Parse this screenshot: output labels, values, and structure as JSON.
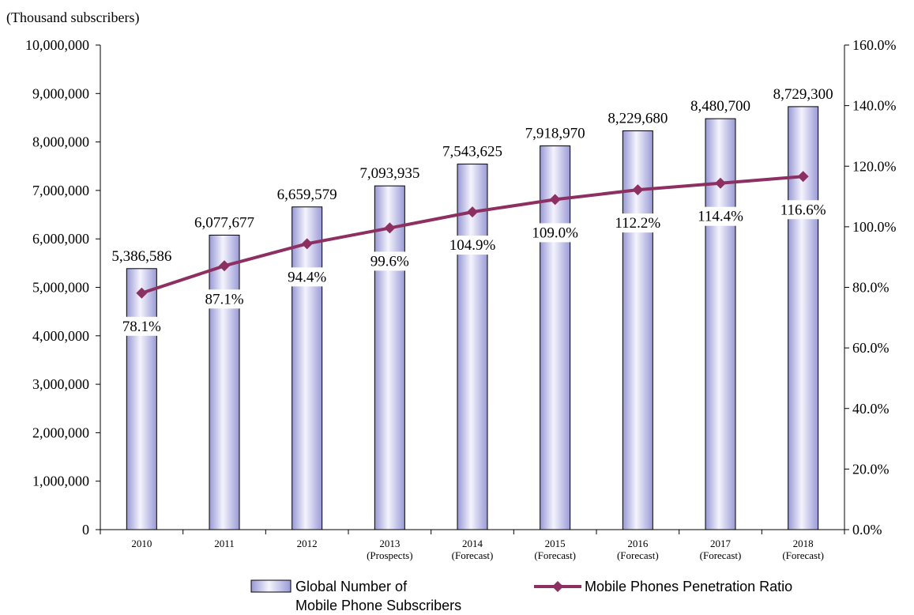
{
  "chart_data": {
    "type": "bar",
    "unit_label": "(Thousand subscribers)",
    "categories": [
      [
        "2010"
      ],
      [
        "2011"
      ],
      [
        "2012"
      ],
      [
        "2013",
        "(Prospects)"
      ],
      [
        "2014",
        "(Forecast)"
      ],
      [
        "2015",
        "(Forecast)"
      ],
      [
        "2016",
        "(Forecast)"
      ],
      [
        "2017",
        "(Forecast)"
      ],
      [
        "2018",
        "(Forecast)"
      ]
    ],
    "series": [
      {
        "name": "Global Number of Mobile Phone Subscribers",
        "legend_lines": [
          "Global Number of",
          "Mobile Phone Subscribers"
        ],
        "type": "bar",
        "axis": "left",
        "values": [
          5386586,
          6077677,
          6659579,
          7093935,
          7543625,
          7918970,
          8229680,
          8480700,
          8729300
        ],
        "labels": [
          "5,386,586",
          "6,077,677",
          "6,659,579",
          "7,093,935",
          "7,543,625",
          "7,918,970",
          "8,229,680",
          "8,480,700",
          "8,729,300"
        ],
        "color": "#b8b8e6"
      },
      {
        "name": "Mobile Phones Penetration Ratio",
        "type": "line",
        "axis": "right",
        "values": [
          78.1,
          87.1,
          94.4,
          99.6,
          104.9,
          109.0,
          112.2,
          114.4,
          116.6
        ],
        "labels": [
          "78.1%",
          "87.1%",
          "94.4%",
          "99.6%",
          "104.9%",
          "109.0%",
          "112.2%",
          "114.4%",
          "116.6%"
        ],
        "color": "#8e2f62"
      }
    ],
    "y_left": {
      "min": 0,
      "max": 10000000,
      "ticks": [
        "0",
        "1,000,000",
        "2,000,000",
        "3,000,000",
        "4,000,000",
        "5,000,000",
        "6,000,000",
        "7,000,000",
        "8,000,000",
        "9,000,000",
        "10,000,000"
      ]
    },
    "y_right": {
      "min": 0,
      "max": 160,
      "ticks": [
        "0.0%",
        "20.0%",
        "40.0%",
        "60.0%",
        "80.0%",
        "100.0%",
        "120.0%",
        "140.0%",
        "160.0%"
      ]
    },
    "grid": false,
    "legend_position": "bottom"
  }
}
